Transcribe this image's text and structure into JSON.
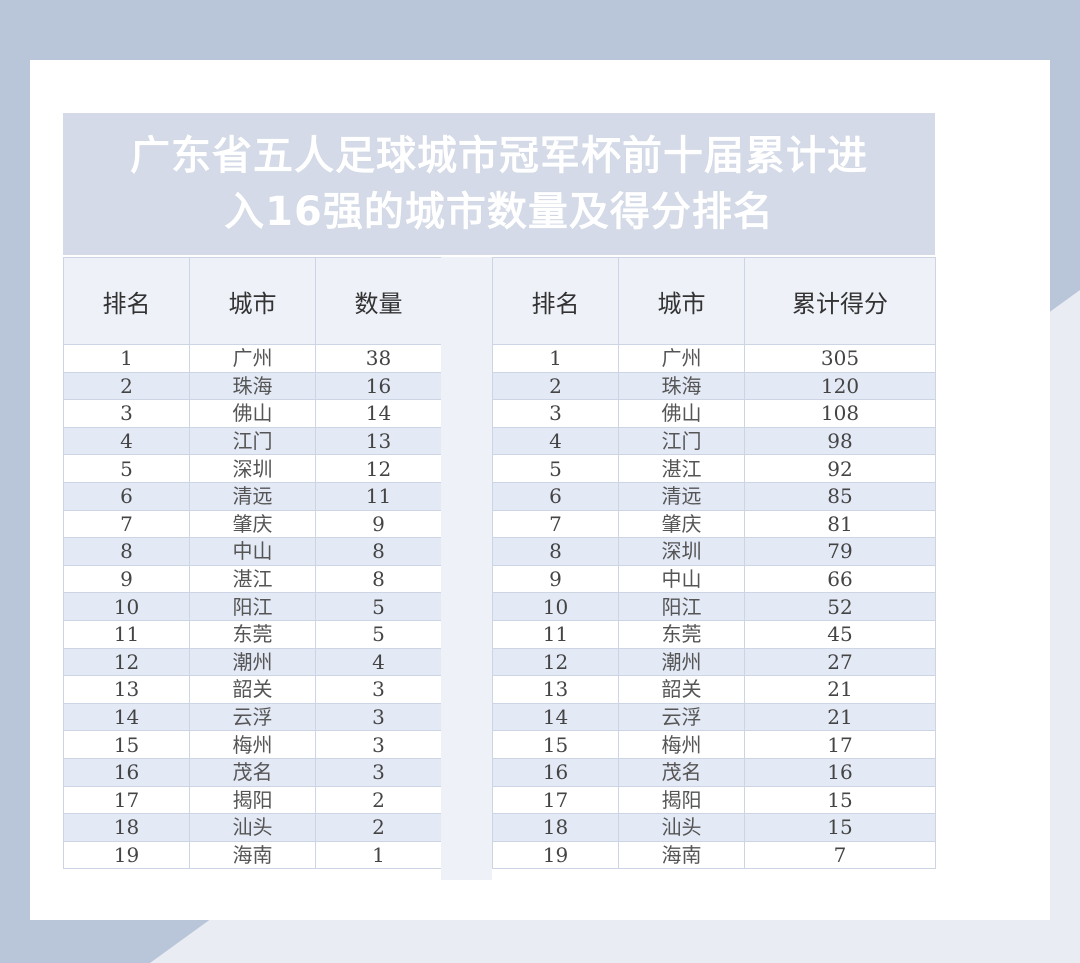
{
  "colors": {
    "background": "#b9c6d9",
    "title_band": "#d4dae7",
    "row_alt": "#e3e9f5",
    "header": "#eef1f8"
  },
  "title": {
    "line1": "广东省五人足球城市冠军杯前十届累计进",
    "line2": "入16强的城市数量及得分排名"
  },
  "left_table": {
    "headers": [
      "排名",
      "城市",
      "数量"
    ],
    "rows": [
      [
        "1",
        "广州",
        "38"
      ],
      [
        "2",
        "珠海",
        "16"
      ],
      [
        "3",
        "佛山",
        "14"
      ],
      [
        "4",
        "江门",
        "13"
      ],
      [
        "5",
        "深圳",
        "12"
      ],
      [
        "6",
        "清远",
        "11"
      ],
      [
        "7",
        "肇庆",
        "9"
      ],
      [
        "8",
        "中山",
        "8"
      ],
      [
        "9",
        "湛江",
        "8"
      ],
      [
        "10",
        "阳江",
        "5"
      ],
      [
        "11",
        "东莞",
        "5"
      ],
      [
        "12",
        "潮州",
        "4"
      ],
      [
        "13",
        "韶关",
        "3"
      ],
      [
        "14",
        "云浮",
        "3"
      ],
      [
        "15",
        "梅州",
        "3"
      ],
      [
        "16",
        "茂名",
        "3"
      ],
      [
        "17",
        "揭阳",
        "2"
      ],
      [
        "18",
        "汕头",
        "2"
      ],
      [
        "19",
        "海南",
        "1"
      ]
    ]
  },
  "right_table": {
    "headers": [
      "排名",
      "城市",
      "累计得分"
    ],
    "rows": [
      [
        "1",
        "广州",
        "305"
      ],
      [
        "2",
        "珠海",
        "120"
      ],
      [
        "3",
        "佛山",
        "108"
      ],
      [
        "4",
        "江门",
        "98"
      ],
      [
        "5",
        "湛江",
        "92"
      ],
      [
        "6",
        "清远",
        "85"
      ],
      [
        "7",
        "肇庆",
        "81"
      ],
      [
        "8",
        "深圳",
        "79"
      ],
      [
        "9",
        "中山",
        "66"
      ],
      [
        "10",
        "阳江",
        "52"
      ],
      [
        "11",
        "东莞",
        "45"
      ],
      [
        "12",
        "潮州",
        "27"
      ],
      [
        "13",
        "韶关",
        "21"
      ],
      [
        "14",
        "云浮",
        "21"
      ],
      [
        "15",
        "梅州",
        "17"
      ],
      [
        "16",
        "茂名",
        "16"
      ],
      [
        "17",
        "揭阳",
        "15"
      ],
      [
        "18",
        "汕头",
        "15"
      ],
      [
        "19",
        "海南",
        "7"
      ]
    ]
  }
}
